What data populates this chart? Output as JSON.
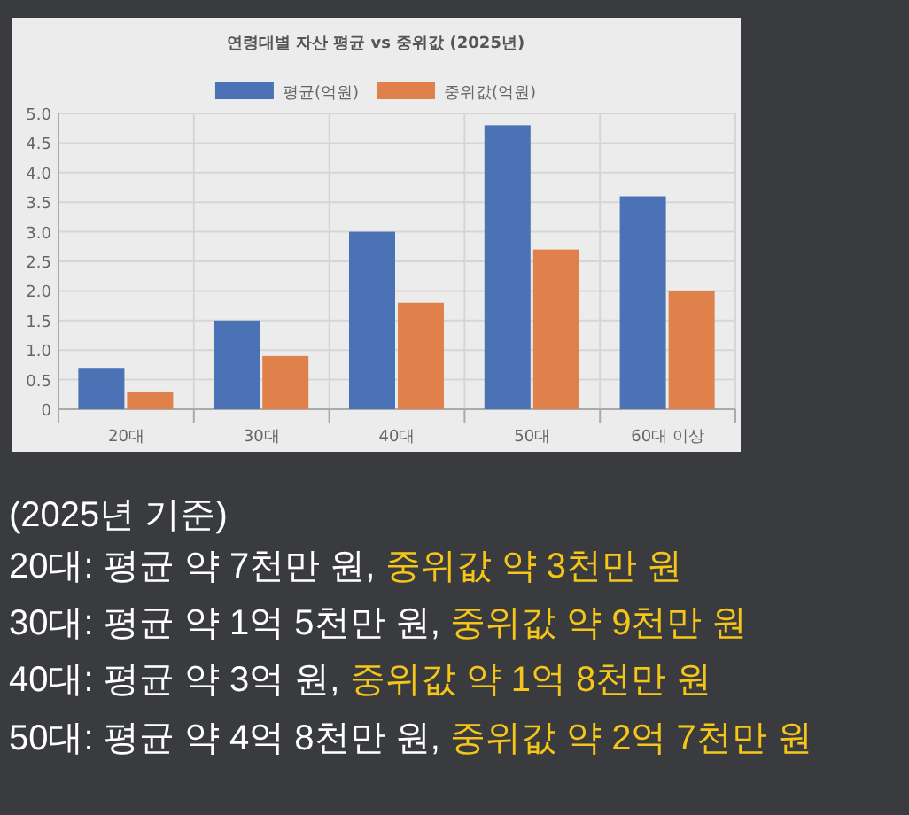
{
  "chart_data": {
    "type": "bar",
    "title": "연령대별 자산 평균 vs 중위값 (2025년)",
    "categories": [
      "20대",
      "30대",
      "40대",
      "50대",
      "60대 이상"
    ],
    "series": [
      {
        "name": "평균(억원)",
        "color": "#4a72b4",
        "values": [
          0.7,
          1.5,
          3.0,
          4.8,
          3.6
        ]
      },
      {
        "name": "중위값(억원)",
        "color": "#e0814b",
        "values": [
          0.3,
          0.9,
          1.8,
          2.7,
          2.0
        ]
      }
    ],
    "ylim": [
      0,
      5
    ],
    "yticks": [
      {
        "value": 0,
        "label": "0"
      },
      0.5,
      {
        "value": 1,
        "label": "1.0"
      },
      1.5,
      {
        "value": 2,
        "label": "2.0"
      },
      2.5,
      {
        "value": 3,
        "label": "3.0"
      },
      3.5,
      {
        "value": 4,
        "label": "4.0"
      },
      4.5,
      {
        "value": 5,
        "label": "5.0"
      }
    ],
    "grid": true,
    "legend": "top",
    "annotations": [
      "(2025년 기준)",
      "20대: 평균 약 7천만 원, 중위값 약 3천만 원",
      "30대: 평균 약 1억 5천만 원, 중위값 약 9천만 원",
      "40대: 평균 약 3억 원, 중위값 약 1억 8천만 원",
      "50대: 평균 약 4억 8천만 원, 중위값 약 2억 7천만 원"
    ]
  }
}
